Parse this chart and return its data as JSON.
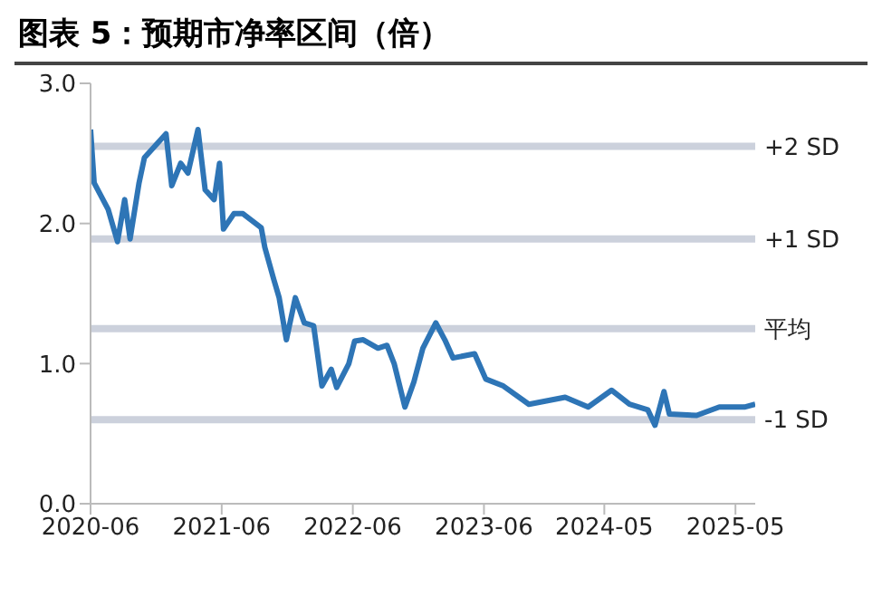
{
  "chart_data": {
    "type": "line",
    "title": "图表 5：预期市净率区间（倍）",
    "x": [
      "2020-06-01",
      "2020-06-11",
      "2020-07-20",
      "2020-08-15",
      "2020-09-04",
      "2020-09-19",
      "2020-10-14",
      "2020-10-29",
      "2020-12-28",
      "2021-01-13",
      "2021-02-07",
      "2021-02-27",
      "2021-03-27",
      "2021-04-16",
      "2021-05-11",
      "2021-05-26",
      "2021-06-06",
      "2021-07-05",
      "2021-07-30",
      "2021-09-19",
      "2021-09-29",
      "2021-10-24",
      "2021-11-08",
      "2021-11-28",
      "2021-12-23",
      "2022-01-17",
      "2022-02-12",
      "2022-03-07",
      "2022-04-02",
      "2022-04-17",
      "2022-05-21",
      "2022-06-06",
      "2022-06-30",
      "2022-08-10",
      "2022-09-04",
      "2022-09-24",
      "2022-10-24",
      "2022-11-18",
      "2022-12-13",
      "2023-01-18",
      "2023-02-12",
      "2023-03-07",
      "2023-05-06",
      "2023-06-06",
      "2023-07-25",
      "2023-10-04",
      "2024-01-13",
      "2024-03-17",
      "2024-05-21",
      "2024-07-10",
      "2024-08-30",
      "2024-09-19",
      "2024-10-14",
      "2024-10-29",
      "2025-01-13",
      "2025-03-17",
      "2025-05-26",
      "2025-06-25"
    ],
    "series": [
      {
        "color": "#2e75b6",
        "values": [
          2.67,
          2.29,
          2.1,
          1.87,
          2.17,
          1.89,
          2.29,
          2.47,
          2.64,
          2.27,
          2.43,
          2.36,
          2.67,
          2.24,
          2.17,
          2.43,
          1.96,
          2.07,
          2.07,
          1.97,
          1.83,
          1.6,
          1.47,
          1.17,
          1.47,
          1.29,
          1.27,
          0.84,
          0.96,
          0.83,
          1.0,
          1.16,
          1.17,
          1.11,
          1.13,
          1.0,
          0.69,
          0.87,
          1.11,
          1.29,
          1.17,
          1.04,
          1.07,
          0.89,
          0.84,
          0.71,
          0.76,
          0.69,
          0.81,
          0.71,
          0.67,
          0.56,
          0.8,
          0.64,
          0.63,
          0.69,
          0.69,
          0.71
        ]
      }
    ],
    "xlim": [
      "2020-06-01",
      "2025-06-25"
    ],
    "xticks": [
      "2020-06",
      "2021-06",
      "2022-06",
      "2023-06",
      "2024-05",
      "2025-05"
    ],
    "ylim": [
      0,
      3
    ],
    "yticks": [
      {
        "value": 0,
        "label": "0.0"
      },
      {
        "value": 1,
        "label": "1.0"
      },
      {
        "value": 2,
        "label": "2.0"
      },
      {
        "value": 3,
        "label": "3.0"
      }
    ],
    "ref_lines": [
      {
        "axis": "y",
        "value": 2.55,
        "label": "+2 SD",
        "color": "#ccd1dc"
      },
      {
        "axis": "y",
        "value": 1.89,
        "label": "+1 SD",
        "color": "#ccd1dc"
      },
      {
        "axis": "y",
        "value": 1.25,
        "label": "平均",
        "color": "#ccd1dc"
      },
      {
        "axis": "y",
        "value": 0.6,
        "label": "-1 SD",
        "color": "#ccd1dc"
      }
    ],
    "grid": false,
    "legend": false,
    "marker": "none",
    "line_style": "solid"
  }
}
